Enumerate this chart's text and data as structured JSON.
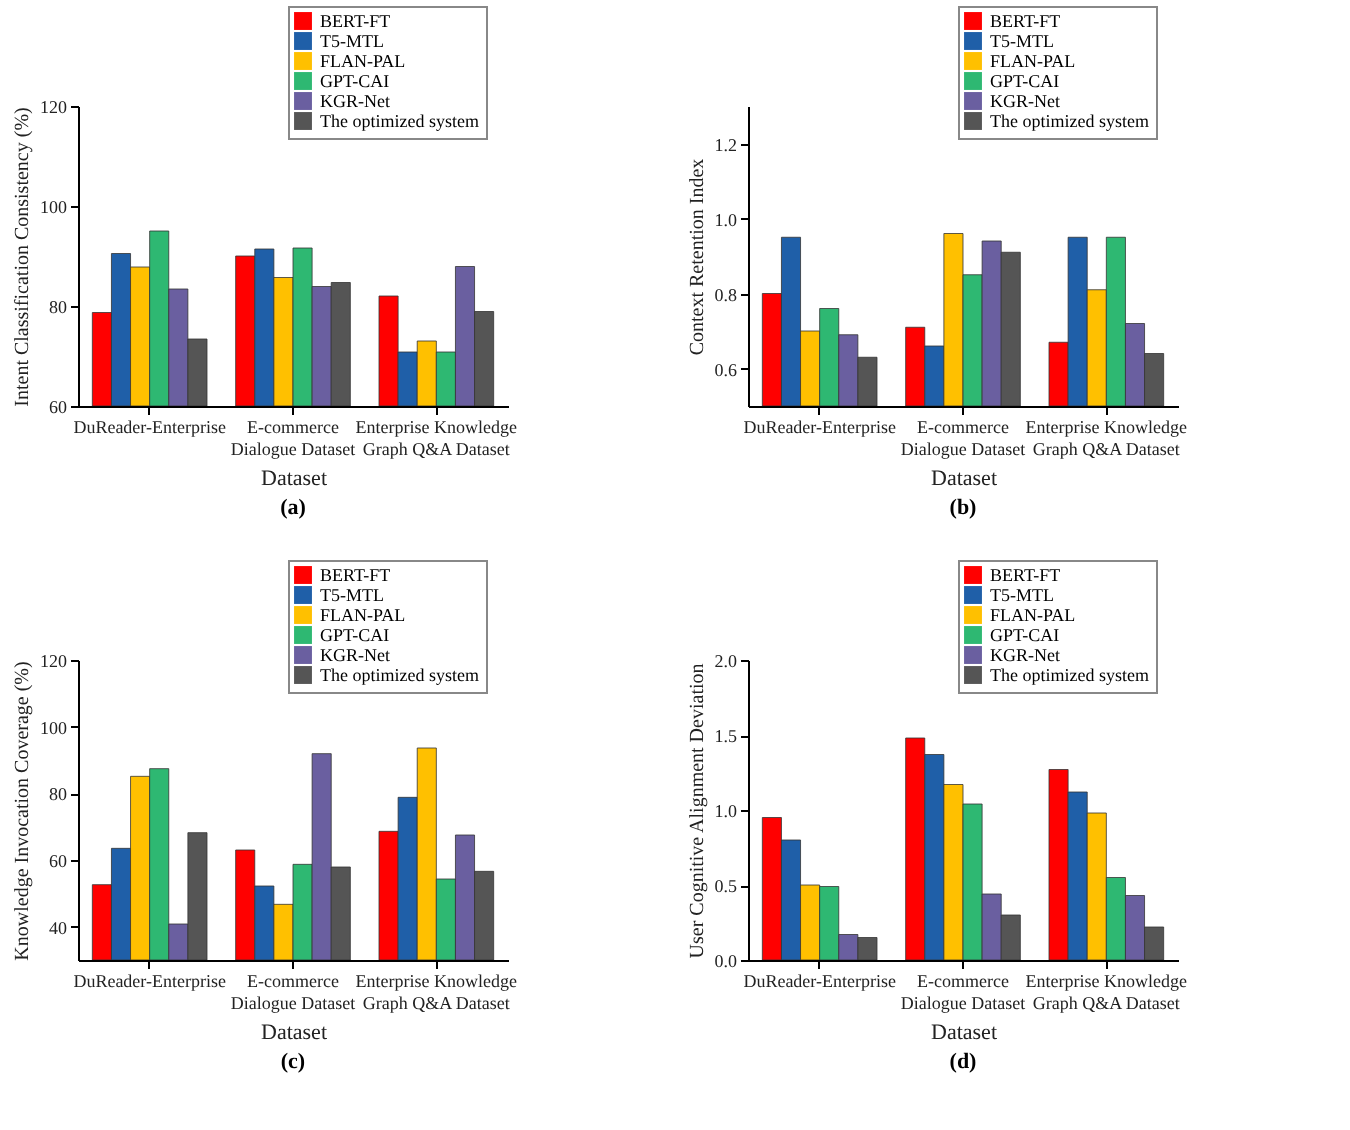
{
  "chart_data": [
    {
      "type": "bar",
      "title": "(a)",
      "xlabel": "Dataset",
      "ylabel": "Intent Classification Consistency (%)",
      "legend": "top right",
      "grid": false,
      "categories": [
        "DuReader-Enterprise",
        "E-commerce\nDialogue Dataset",
        "Enterprise Knowledge\nGraph Q&A Dataset"
      ],
      "ylim": [
        60,
        120
      ],
      "yticks": [
        60,
        80,
        100,
        120
      ],
      "series": [
        {
          "name": "BERT-FT",
          "color": "#ff0000",
          "values": [
            78.7,
            90,
            82
          ]
        },
        {
          "name": "T5-MTL",
          "color": "#1f5fa8",
          "values": [
            90.5,
            91.4,
            70.8
          ]
        },
        {
          "name": "FLAN-PAL",
          "color": "#ffc000",
          "values": [
            87.8,
            85.7,
            73
          ]
        },
        {
          "name": "GPT-CAI",
          "color": "#2eb872",
          "values": [
            95,
            91.6,
            70.8
          ]
        },
        {
          "name": "KGR-Net",
          "color": "#6a5fa0",
          "values": [
            83.4,
            83.9,
            87.9
          ]
        },
        {
          "name": "The optimized system",
          "color": "#555555",
          "values": [
            73.4,
            84.7,
            78.9
          ]
        }
      ]
    },
    {
      "type": "bar",
      "title": "(b)",
      "xlabel": "Dataset",
      "ylabel": "Context Retention Index",
      "legend": "top right",
      "grid": false,
      "categories": [
        "DuReader-Enterprise",
        "E-commerce\nDialogue Dataset",
        "Enterprise Knowledge\nGraph Q&A Dataset"
      ],
      "ylim": [
        0.5,
        1.3
      ],
      "yticks": [
        0.6,
        0.8,
        {
          "value": 1,
          "label": "1.0"
        },
        1.2
      ],
      "series": [
        {
          "name": "BERT-FT",
          "color": "#ff0000",
          "values": [
            0.8,
            0.71,
            0.67
          ]
        },
        {
          "name": "T5-MTL",
          "color": "#1f5fa8",
          "values": [
            0.95,
            0.66,
            0.95
          ]
        },
        {
          "name": "FLAN-PAL",
          "color": "#ffc000",
          "values": [
            0.7,
            0.96,
            0.81
          ]
        },
        {
          "name": "GPT-CAI",
          "color": "#2eb872",
          "values": [
            0.76,
            0.85,
            0.95
          ]
        },
        {
          "name": "KGR-Net",
          "color": "#6a5fa0",
          "values": [
            0.69,
            0.94,
            0.72
          ]
        },
        {
          "name": "The optimized system",
          "color": "#555555",
          "values": [
            0.63,
            0.91,
            0.64
          ]
        }
      ]
    },
    {
      "type": "bar",
      "title": "(c)",
      "xlabel": "Dataset",
      "ylabel": "Knowledge Invocation Coverage (%)",
      "legend": "top right",
      "grid": false,
      "categories": [
        "DuReader-Enterprise",
        "E-commerce\nDialogue Dataset",
        "Enterprise Knowledge\nGraph Q&A Dataset"
      ],
      "ylim": [
        30,
        120
      ],
      "yticks": [
        40,
        60,
        80,
        100,
        120
      ],
      "series": [
        {
          "name": "BERT-FT",
          "color": "#ff0000",
          "values": [
            52.6,
            63,
            68.6
          ]
        },
        {
          "name": "T5-MTL",
          "color": "#1f5fa8",
          "values": [
            63.5,
            52.2,
            78.8
          ]
        },
        {
          "name": "FLAN-PAL",
          "color": "#ffc000",
          "values": [
            85.1,
            46.7,
            93.6
          ]
        },
        {
          "name": "GPT-CAI",
          "color": "#2eb872",
          "values": [
            87.4,
            58.7,
            54.3
          ]
        },
        {
          "name": "KGR-Net",
          "color": "#6a5fa0",
          "values": [
            40.8,
            91.9,
            67.5
          ]
        },
        {
          "name": "The optimized system",
          "color": "#555555",
          "values": [
            68.2,
            57.9,
            56.6
          ]
        }
      ]
    },
    {
      "type": "bar",
      "title": "(d)",
      "xlabel": "Dataset",
      "ylabel": "User Cognitive Alignment Deviation",
      "legend": "top right",
      "grid": false,
      "categories": [
        "DuReader-Enterprise",
        "E-commerce\nDialogue Dataset",
        "Enterprise Knowledge\nGraph Q&A Dataset"
      ],
      "ylim": [
        0,
        2
      ],
      "yticks": [
        {
          "value": 0,
          "label": "0.0"
        },
        0.5,
        {
          "value": 1,
          "label": "1.0"
        },
        1.5,
        {
          "value": 2,
          "label": "2.0"
        }
      ],
      "series": [
        {
          "name": "BERT-FT",
          "color": "#ff0000",
          "values": [
            0.95,
            1.48,
            1.27
          ]
        },
        {
          "name": "T5-MTL",
          "color": "#1f5fa8",
          "values": [
            0.8,
            1.37,
            1.12
          ]
        },
        {
          "name": "FLAN-PAL",
          "color": "#ffc000",
          "values": [
            0.5,
            1.17,
            0.98
          ]
        },
        {
          "name": "GPT-CAI",
          "color": "#2eb872",
          "values": [
            0.49,
            1.04,
            0.55
          ]
        },
        {
          "name": "KGR-Net",
          "color": "#6a5fa0",
          "values": [
            0.17,
            0.44,
            0.43
          ]
        },
        {
          "name": "The optimized system",
          "color": "#555555",
          "values": [
            0.15,
            0.3,
            0.22
          ]
        }
      ]
    }
  ]
}
